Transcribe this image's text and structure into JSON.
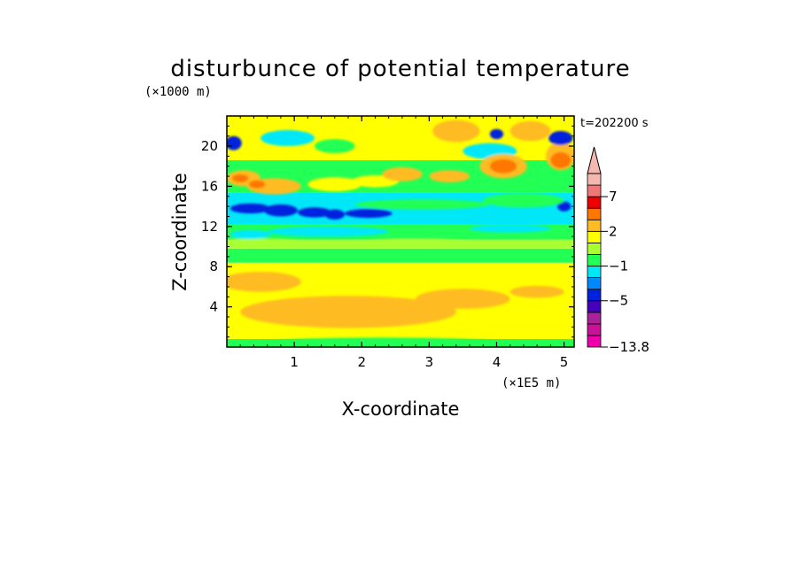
{
  "chart_data": {
    "type": "heatmap",
    "title": "disturbunce of potential temperature",
    "time_label": "t=202200 s",
    "xlabel": "X-coordinate",
    "ylabel": "Z-coordinate",
    "x_unit": "(×1E5 m)",
    "y_unit": "(×1000 m)",
    "xlim": [
      0,
      5.15
    ],
    "ylim": [
      0,
      23
    ],
    "x_ticks": [
      1,
      2,
      3,
      4,
      5
    ],
    "y_ticks": [
      4,
      8,
      12,
      16,
      20
    ],
    "colorbar": {
      "labels": [
        {
          "text": "7",
          "value": 7
        },
        {
          "text": "2",
          "value": 2
        },
        {
          "text": "−1",
          "value": -1
        },
        {
          "text": "−5",
          "value": -5
        },
        {
          "text": "−13.8",
          "value": -13.8
        }
      ],
      "levels": [
        {
          "color": "#ee00aa"
        },
        {
          "color": "#cc1199"
        },
        {
          "color": "#aa2299"
        },
        {
          "color": "#4400bb"
        },
        {
          "color": "#0022dd"
        },
        {
          "color": "#0088ff"
        },
        {
          "color": "#00e8f8"
        },
        {
          "color": "#22ff55"
        },
        {
          "color": "#aaff33"
        },
        {
          "color": "#ffff00"
        },
        {
          "color": "#ffbb22"
        },
        {
          "color": "#ff7700"
        },
        {
          "color": "#ee0000"
        },
        {
          "color": "#ee7777"
        },
        {
          "color": "#f4b8b0"
        }
      ]
    },
    "field_bands": [
      {
        "z": [
          0,
          0.8
        ],
        "color": "#22ff55"
      },
      {
        "z": [
          0.8,
          8.4
        ],
        "color": "#ffff00"
      },
      {
        "z": [
          8.4,
          9.8
        ],
        "color": "#22ff55"
      },
      {
        "z": [
          9.8,
          10.7
        ],
        "color": "#aaff33"
      },
      {
        "z": [
          10.7,
          12.2
        ],
        "color": "#22ff55"
      },
      {
        "z": [
          12.2,
          15.4
        ],
        "color": "#00e8f8"
      },
      {
        "z": [
          15.4,
          18.6
        ],
        "color": "#22ff55"
      },
      {
        "z": [
          18.6,
          23
        ],
        "color": "#ffff00"
      }
    ],
    "features": [
      {
        "x": 1.8,
        "z": 3.5,
        "rx": 1.6,
        "rz": 1.6,
        "color": "#ffbb22"
      },
      {
        "x": 3.5,
        "z": 4.8,
        "rx": 0.7,
        "rz": 1.0,
        "color": "#ffbb22"
      },
      {
        "x": 0.5,
        "z": 6.5,
        "rx": 0.6,
        "rz": 1.0,
        "color": "#ffbb22"
      },
      {
        "x": 4.6,
        "z": 5.5,
        "rx": 0.4,
        "rz": 0.6,
        "color": "#ffbb22"
      },
      {
        "x": 2.3,
        "z": 0.5,
        "rx": 1.7,
        "rz": 0.45,
        "color": "#22ff55"
      },
      {
        "x": 0.5,
        "z": 10.4,
        "rx": 0.6,
        "rz": 0.4,
        "color": "#aaff33"
      },
      {
        "x": 2.8,
        "z": 10.4,
        "rx": 0.8,
        "rz": 0.4,
        "color": "#aaff33"
      },
      {
        "x": 0.35,
        "z": 11.2,
        "rx": 0.3,
        "rz": 0.45,
        "color": "#00e8f8"
      },
      {
        "x": 1.5,
        "z": 11.5,
        "rx": 0.9,
        "rz": 0.5,
        "color": "#00e8f8"
      },
      {
        "x": 4.2,
        "z": 11.8,
        "rx": 0.6,
        "rz": 0.4,
        "color": "#00e8f8"
      },
      {
        "x": 0.35,
        "z": 13.8,
        "rx": 0.3,
        "rz": 0.5,
        "color": "#0022dd"
      },
      {
        "x": 0.8,
        "z": 13.6,
        "rx": 0.25,
        "rz": 0.6,
        "color": "#0022dd"
      },
      {
        "x": 1.3,
        "z": 13.4,
        "rx": 0.25,
        "rz": 0.5,
        "color": "#0022dd"
      },
      {
        "x": 1.6,
        "z": 13.2,
        "rx": 0.15,
        "rz": 0.5,
        "color": "#0022dd"
      },
      {
        "x": 2.1,
        "z": 13.3,
        "rx": 0.35,
        "rz": 0.45,
        "color": "#0022dd"
      },
      {
        "x": 5.0,
        "z": 14.0,
        "rx": 0.1,
        "rz": 0.5,
        "color": "#0022dd"
      },
      {
        "x": 2.9,
        "z": 14.2,
        "rx": 1.0,
        "rz": 0.5,
        "color": "#22ff55"
      },
      {
        "x": 4.4,
        "z": 14.6,
        "rx": 0.6,
        "rz": 0.7,
        "color": "#22ff55"
      },
      {
        "x": 0.25,
        "z": 16.8,
        "rx": 0.25,
        "rz": 0.8,
        "color": "#ffbb22"
      },
      {
        "x": 0.7,
        "z": 16.0,
        "rx": 0.4,
        "rz": 0.8,
        "color": "#ffbb22"
      },
      {
        "x": 0.2,
        "z": 16.8,
        "rx": 0.12,
        "rz": 0.4,
        "color": "#ff7700"
      },
      {
        "x": 0.45,
        "z": 16.2,
        "rx": 0.12,
        "rz": 0.4,
        "color": "#ff7700"
      },
      {
        "x": 1.6,
        "z": 16.2,
        "rx": 0.4,
        "rz": 0.7,
        "color": "#ffff00"
      },
      {
        "x": 2.2,
        "z": 16.5,
        "rx": 0.35,
        "rz": 0.6,
        "color": "#ffff00"
      },
      {
        "x": 2.6,
        "z": 17.2,
        "rx": 0.3,
        "rz": 0.7,
        "color": "#ffbb22"
      },
      {
        "x": 3.3,
        "z": 17.0,
        "rx": 0.3,
        "rz": 0.6,
        "color": "#ffbb22"
      },
      {
        "x": 3.9,
        "z": 19.5,
        "rx": 0.4,
        "rz": 0.8,
        "color": "#00e8f8"
      },
      {
        "x": 4.1,
        "z": 18.0,
        "rx": 0.35,
        "rz": 1.2,
        "color": "#ffbb22"
      },
      {
        "x": 4.1,
        "z": 18.0,
        "rx": 0.2,
        "rz": 0.7,
        "color": "#ff7700"
      },
      {
        "x": 3.4,
        "z": 21.5,
        "rx": 0.35,
        "rz": 1.1,
        "color": "#ffbb22"
      },
      {
        "x": 4.5,
        "z": 21.5,
        "rx": 0.3,
        "rz": 1.0,
        "color": "#ffbb22"
      },
      {
        "x": 4.0,
        "z": 21.2,
        "rx": 0.1,
        "rz": 0.5,
        "color": "#0022dd"
      },
      {
        "x": 4.95,
        "z": 19.0,
        "rx": 0.22,
        "rz": 1.4,
        "color": "#ffbb22"
      },
      {
        "x": 4.95,
        "z": 18.6,
        "rx": 0.15,
        "rz": 0.8,
        "color": "#ff7700"
      },
      {
        "x": 4.95,
        "z": 20.8,
        "rx": 0.18,
        "rz": 0.7,
        "color": "#0022dd"
      },
      {
        "x": 0.1,
        "z": 20.3,
        "rx": 0.12,
        "rz": 0.7,
        "color": "#0022dd"
      },
      {
        "x": 0.9,
        "z": 20.8,
        "rx": 0.4,
        "rz": 0.8,
        "color": "#00e8f8"
      },
      {
        "x": 1.6,
        "z": 20.0,
        "rx": 0.3,
        "rz": 0.7,
        "color": "#22ff55"
      }
    ]
  }
}
